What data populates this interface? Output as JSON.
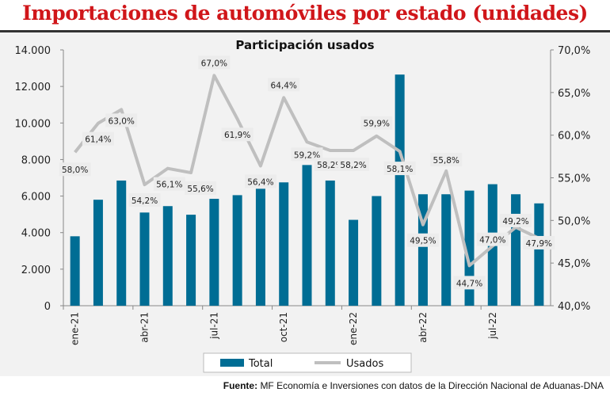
{
  "title": "Importaciones de automóviles por estado (unidades)",
  "source_label": "Fuente:",
  "source_text": "MF Economía e Inversiones con datos de la Dirección Nacional de Aduanas-DNA",
  "chart_data": {
    "type": "bar+line",
    "title": "Participación usados",
    "categories": [
      "ene-21",
      "feb-21",
      "mar-21",
      "abr-21",
      "may-21",
      "jun-21",
      "jul-21",
      "ago-21",
      "sep-21",
      "oct-21",
      "nov-21",
      "dic-21",
      "ene-22",
      "feb-22",
      "mar-22",
      "abr-22",
      "may-22",
      "jun-22",
      "jul-22",
      "ago-22",
      "sep-22"
    ],
    "x_tick_labels": [
      "ene-21",
      "abr-21",
      "jul-21",
      "oct-21",
      "ene-22",
      "abr-22",
      "jul-22"
    ],
    "series": [
      {
        "name": "Total",
        "type": "bar",
        "axis": "left",
        "color": "#006d94",
        "values": [
          3800,
          5800,
          6850,
          5100,
          5450,
          4980,
          5850,
          6050,
          6400,
          6750,
          7700,
          6850,
          4700,
          6000,
          12650,
          6100,
          6100,
          6300,
          6650,
          6100,
          5600
        ]
      },
      {
        "name": "Usados",
        "type": "line",
        "axis": "right",
        "color": "#bfbfbf",
        "values": [
          58.0,
          61.4,
          63.0,
          54.2,
          56.1,
          55.6,
          67.0,
          61.9,
          56.4,
          64.4,
          59.2,
          58.2,
          58.2,
          59.9,
          58.1,
          49.5,
          55.8,
          44.7,
          47.0,
          49.2,
          47.9
        ],
        "data_labels": [
          "58,0%",
          "61,4%",
          "63,0%",
          "54,2%",
          "56,1%",
          "55,6%",
          "67,0%",
          "61,9%",
          "56,4%",
          "64,4%",
          "59,2%",
          "58,2%",
          "58,2%",
          "59,9%",
          "58,1%",
          "49,5%",
          "55,8%",
          "44,7%",
          "47,0%",
          "49,2%",
          "47,9%"
        ]
      }
    ],
    "left_axis": {
      "ylim": [
        0,
        14000
      ],
      "ticks": [
        "0",
        "2.000",
        "4.000",
        "6.000",
        "8.000",
        "10.000",
        "12.000",
        "14.000"
      ]
    },
    "right_axis": {
      "ylim": [
        40,
        70
      ],
      "ticks": [
        "40,0%",
        "45,0%",
        "50,0%",
        "55,0%",
        "60,0%",
        "65,0%",
        "70,0%"
      ]
    },
    "grid": false,
    "legend": "bottom"
  }
}
